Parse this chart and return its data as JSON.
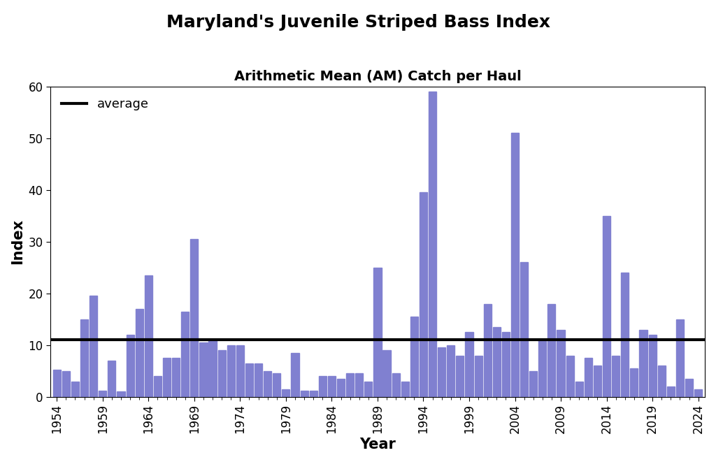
{
  "title": "Maryland's Juvenile Striped Bass Index",
  "subtitle": "Arithmetic Mean (AM) Catch per Haul",
  "xlabel": "Year",
  "ylabel": "Index",
  "bar_color": "#8080d0",
  "average_value": 11.0,
  "average_label": "average",
  "ylim": [
    0,
    60
  ],
  "yticks": [
    0,
    10,
    20,
    30,
    40,
    50,
    60
  ],
  "xtick_years": [
    1954,
    1959,
    1964,
    1969,
    1974,
    1979,
    1984,
    1989,
    1994,
    1999,
    2004,
    2009,
    2014,
    2019,
    2024
  ],
  "years": [
    1954,
    1955,
    1956,
    1957,
    1958,
    1959,
    1960,
    1961,
    1962,
    1963,
    1964,
    1965,
    1966,
    1967,
    1968,
    1969,
    1970,
    1971,
    1972,
    1973,
    1974,
    1975,
    1976,
    1977,
    1978,
    1979,
    1980,
    1981,
    1982,
    1983,
    1984,
    1985,
    1986,
    1987,
    1988,
    1989,
    1990,
    1991,
    1992,
    1993,
    1994,
    1995,
    1996,
    1997,
    1998,
    1999,
    2000,
    2001,
    2002,
    2003,
    2004,
    2005,
    2006,
    2007,
    2008,
    2009,
    2010,
    2011,
    2012,
    2013,
    2014,
    2015,
    2016,
    2017,
    2018,
    2019,
    2020,
    2021,
    2022,
    2023,
    2024
  ],
  "values": [
    5.2,
    5.0,
    3.0,
    15.0,
    19.5,
    1.2,
    7.0,
    1.0,
    12.0,
    17.0,
    23.5,
    4.0,
    7.5,
    7.5,
    16.5,
    30.5,
    10.5,
    11.0,
    9.0,
    10.0,
    10.0,
    6.5,
    6.5,
    5.0,
    4.5,
    1.5,
    8.5,
    1.2,
    1.2,
    4.0,
    4.0,
    3.5,
    4.5,
    4.5,
    3.0,
    25.0,
    9.0,
    4.5,
    3.0,
    15.5,
    39.5,
    59.0,
    9.5,
    10.0,
    8.0,
    12.5,
    8.0,
    18.0,
    13.5,
    12.5,
    51.0,
    26.0,
    5.0,
    11.0,
    18.0,
    13.0,
    8.0,
    3.0,
    7.5,
    6.0,
    35.0,
    8.0,
    24.0,
    5.5,
    13.0,
    12.0,
    6.0,
    2.0,
    15.0,
    3.5,
    1.5
  ],
  "background_color": "#ffffff",
  "plot_bg_color": "#ffffff",
  "title_fontsize": 18,
  "subtitle_fontsize": 14,
  "axis_label_fontsize": 15,
  "tick_fontsize": 12,
  "legend_fontsize": 13
}
